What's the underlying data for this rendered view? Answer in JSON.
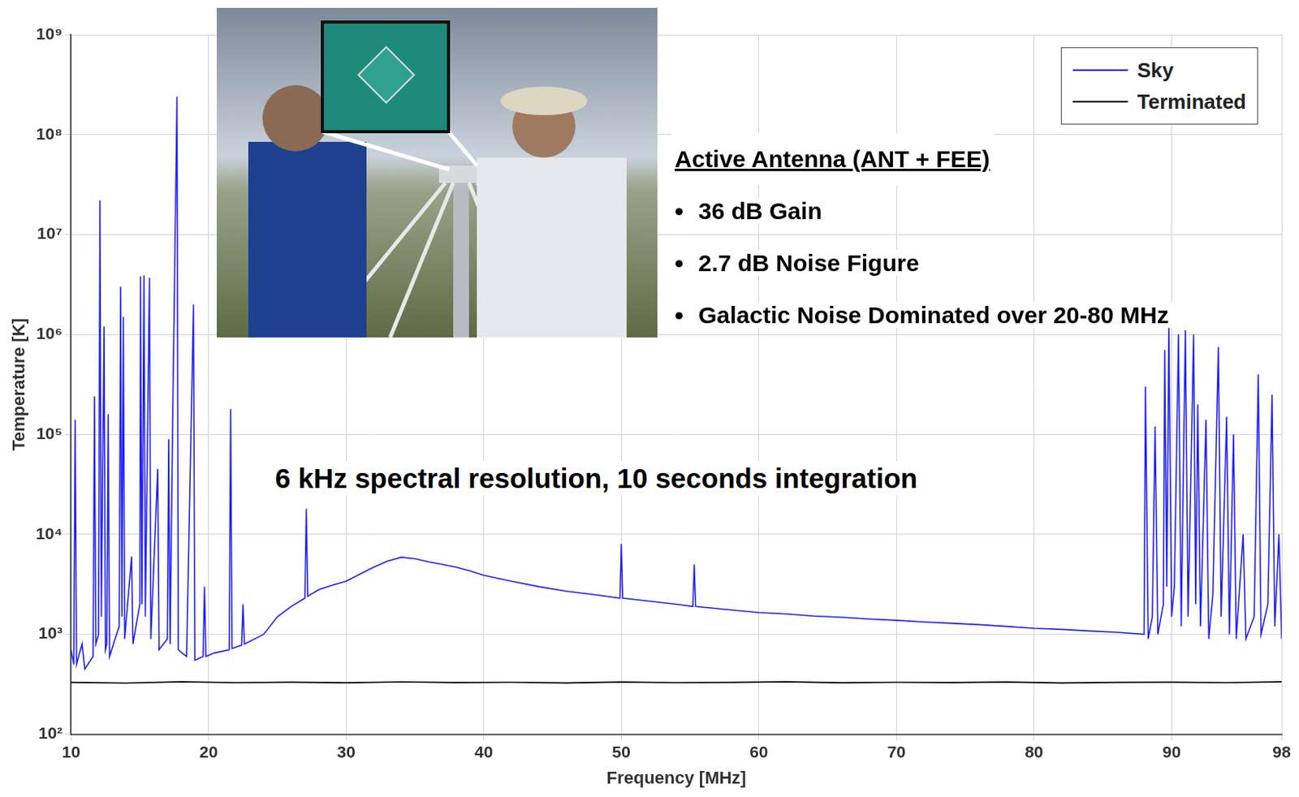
{
  "chart_data": {
    "type": "line",
    "x_label": "Frequency [MHz]",
    "y_label": "Temperature [K]",
    "xlim": [
      10,
      98
    ],
    "ylim": [
      100,
      1000000000
    ],
    "xticks": [
      10,
      20,
      30,
      40,
      50,
      60,
      70,
      80,
      90,
      98
    ],
    "yticks": [
      {
        "value": 100,
        "label": "10²"
      },
      {
        "value": 1000,
        "label": "10³"
      },
      {
        "value": 10000,
        "label": "10⁴"
      },
      {
        "value": 100000,
        "label": "10⁵"
      },
      {
        "value": 1000000,
        "label": "10⁶"
      },
      {
        "value": 10000000,
        "label": "10⁷"
      },
      {
        "value": 100000000,
        "label": "10⁸"
      },
      {
        "value": 1000000000,
        "label": "10⁹"
      }
    ],
    "log": "y",
    "grid": true,
    "legend": "upper right",
    "annotations": [
      {
        "heading": "Active Antenna (ANT + FEE)",
        "bullets": [
          "36 dB Gain",
          "2.7 dB Noise Figure",
          "Galactic Noise Dominated over 20-80 MHz"
        ]
      },
      {
        "text": "6 kHz spectral resolution, 10 seconds integration"
      }
    ],
    "series": [
      {
        "name": "Sky",
        "color": "#1f1fff",
        "x": [
          10.0,
          10.2,
          10.3,
          10.4,
          10.8,
          11.0,
          11.6,
          11.7,
          11.8,
          12.0,
          12.1,
          12.2,
          12.4,
          12.5,
          12.6,
          12.7,
          12.8,
          13.2,
          13.5,
          13.6,
          13.7,
          13.8,
          13.9,
          14.4,
          14.5,
          15.0,
          15.05,
          15.15,
          15.3,
          15.4,
          15.7,
          15.8,
          16.3,
          16.4,
          17.0,
          17.1,
          17.2,
          17.4,
          17.5,
          17.7,
          17.8,
          18.4,
          18.9,
          19.0,
          19.6,
          19.7,
          19.8,
          20.4,
          21.5,
          21.6,
          21.7,
          22.4,
          22.5,
          22.6,
          24,
          25,
          26,
          27.0,
          27.1,
          27.2,
          28,
          29,
          30,
          31,
          32,
          33,
          34,
          35,
          36,
          37,
          38,
          39,
          40,
          42,
          44,
          46,
          48,
          49.9,
          50.0,
          50.1,
          52,
          54,
          55.2,
          55.3,
          55.4,
          58,
          60,
          62,
          64,
          66,
          68,
          70,
          72,
          74,
          76,
          78,
          80,
          82,
          84,
          86,
          88.0,
          88.1,
          88.3,
          88.6,
          88.8,
          89.0,
          89.4,
          89.5,
          89.65,
          89.8,
          90.0,
          90.2,
          90.5,
          90.7,
          91.0,
          91.2,
          91.6,
          91.75,
          91.9,
          92.1,
          92.5,
          92.7,
          93.0,
          93.4,
          93.6,
          94.0,
          94.2,
          94.5,
          94.7,
          95.2,
          95.4,
          96.0,
          96.3,
          96.5,
          97.0,
          97.3,
          97.5,
          97.8,
          98
        ],
        "values": [
          700,
          500,
          140000,
          500,
          800,
          450,
          600,
          240000,
          800,
          1000,
          22000000,
          1500,
          1200000,
          700,
          800,
          160000,
          600,
          900,
          1200,
          3000000,
          1500,
          1500000,
          900,
          6000,
          800,
          2000,
          3800000,
          2000,
          3900000,
          1500,
          3700000,
          900,
          45000,
          700,
          900,
          90000,
          800,
          200000,
          2000000,
          240000000,
          700,
          600,
          2000000,
          550,
          600,
          3000,
          600,
          650,
          700,
          180000,
          720,
          780,
          2000,
          800,
          1000,
          1500,
          1900,
          2300,
          18000,
          2400,
          2800,
          3100,
          3400,
          4000,
          4700,
          5400,
          5900,
          5700,
          5300,
          5000,
          4700,
          4300,
          3900,
          3400,
          3000,
          2700,
          2500,
          2300,
          8000,
          2300,
          2150,
          2000,
          1900,
          5000,
          1900,
          1750,
          1650,
          1600,
          1520,
          1480,
          1420,
          1380,
          1330,
          1290,
          1250,
          1200,
          1150,
          1120,
          1080,
          1050,
          1000,
          300000,
          900,
          1500,
          120000,
          1000,
          2000,
          700000,
          3000,
          1200000,
          1500,
          3000,
          1000000,
          1200,
          1100000,
          1500,
          1000000,
          2000,
          200000,
          1200,
          140000,
          900,
          2500,
          750000,
          1500,
          150000,
          1000,
          100000,
          900,
          10000,
          900,
          1500,
          400000,
          1000,
          2000,
          250000,
          1200,
          10000,
          900
        ]
      },
      {
        "name": "Terminated",
        "color": "#000000",
        "x": [
          10,
          14,
          18,
          22,
          26,
          30,
          34,
          38,
          42,
          46,
          50,
          54,
          58,
          62,
          66,
          70,
          74,
          78,
          82,
          86,
          90,
          94,
          98
        ],
        "values": [
          330,
          325,
          335,
          328,
          332,
          327,
          334,
          329,
          331,
          326,
          333,
          328,
          330,
          335,
          327,
          331,
          329,
          333,
          326,
          330,
          332,
          328,
          335
        ]
      }
    ]
  }
}
